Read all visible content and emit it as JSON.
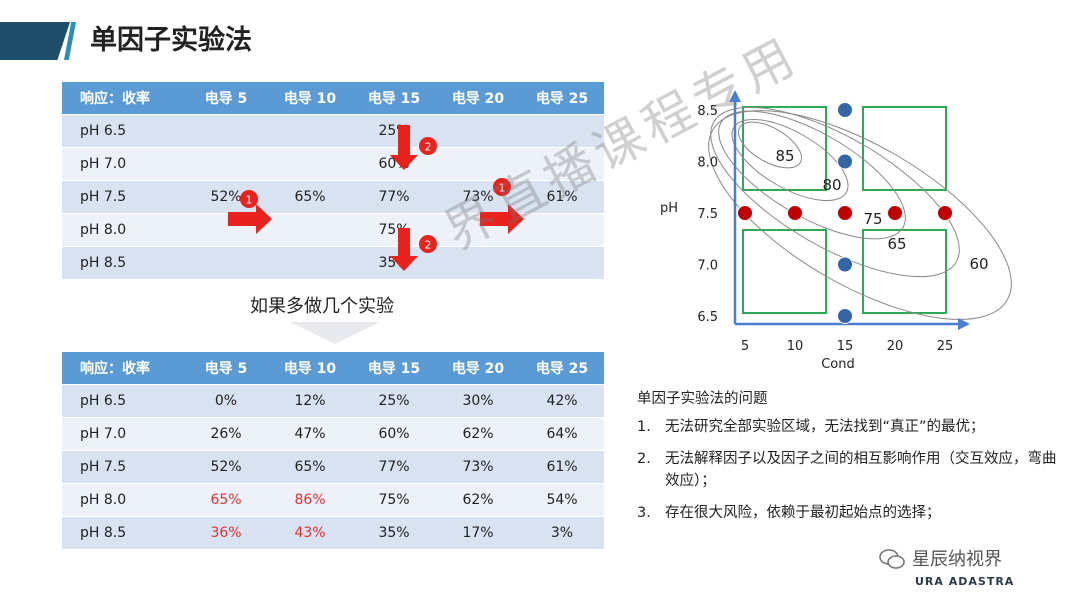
{
  "title": "单因子实验法",
  "table1": {
    "header": [
      "响应：收率",
      "电导 5",
      "电导 10",
      "电导 15",
      "电导 20",
      "电导 25"
    ],
    "rows": [
      [
        "pH 6.5",
        "",
        "",
        "25%",
        "",
        ""
      ],
      [
        "pH 7.0",
        "",
        "",
        "60%",
        "",
        ""
      ],
      [
        "pH 7.5",
        "52%",
        "65%",
        "77%",
        "73%",
        "61%"
      ],
      [
        "pH 8.0",
        "",
        "",
        "75%",
        "",
        ""
      ],
      [
        "pH 8.5",
        "",
        "",
        "35%",
        "",
        ""
      ]
    ],
    "markers": [
      "1",
      "1",
      "2",
      "2"
    ]
  },
  "middle_text": "如果多做几个实验",
  "table2": {
    "header": [
      "响应：收率",
      "电导 5",
      "电导 10",
      "电导 15",
      "电导 20",
      "电导 25"
    ],
    "rows": [
      [
        "pH 6.5",
        "0%",
        "12%",
        "25%",
        "30%",
        "42%"
      ],
      [
        "pH 7.0",
        "26%",
        "47%",
        "60%",
        "62%",
        "64%"
      ],
      [
        "pH 7.5",
        "52%",
        "65%",
        "77%",
        "73%",
        "61%"
      ],
      [
        "pH 8.0",
        "65%",
        "86%",
        "75%",
        "62%",
        "54%"
      ],
      [
        "pH 8.5",
        "36%",
        "43%",
        "35%",
        "17%",
        "3%"
      ]
    ],
    "red_cells": [
      [
        3,
        1
      ],
      [
        3,
        2
      ],
      [
        4,
        1
      ],
      [
        4,
        2
      ]
    ],
    "red_color": "#e03030"
  },
  "chart_data": {
    "type": "scatter",
    "title": "",
    "xlabel": "Cond",
    "ylabel": "pH",
    "x_ticks": [
      "5",
      "10",
      "15",
      "20",
      "25"
    ],
    "y_ticks": [
      "8.5",
      "8.0",
      "7.5",
      "7.0",
      "6.5"
    ],
    "series": [
      {
        "name": "",
        "color": "#c00000",
        "x": [
          5,
          10,
          15,
          20,
          25
        ],
        "y": [
          7.5,
          7.5,
          7.5,
          7.5,
          7.5
        ]
      },
      {
        "name": "",
        "color": "#3465a4",
        "x": [
          15,
          15,
          15,
          15
        ],
        "y": [
          8.5,
          8.0,
          7.0,
          6.5
        ]
      }
    ],
    "contour_labels": [
      "85",
      "80",
      "75",
      "65",
      "60"
    ]
  },
  "notes": {
    "heading": "单因子实验法的问题",
    "items": [
      {
        "num": "1.",
        "text": "无法研究全部实验区域，无法找到“真正”的最优；"
      },
      {
        "num": "2.",
        "text": "无法解释因子以及因子之间的相互影响作用（交互效应，弯曲效应）；"
      },
      {
        "num": "3.",
        "text": "存在很大风险，依赖于最初起始点的选择；"
      }
    ]
  },
  "watermark": "界直播课程专用",
  "brand": {
    "name": "星辰纳视界",
    "sub": "URA ADASTRA"
  }
}
